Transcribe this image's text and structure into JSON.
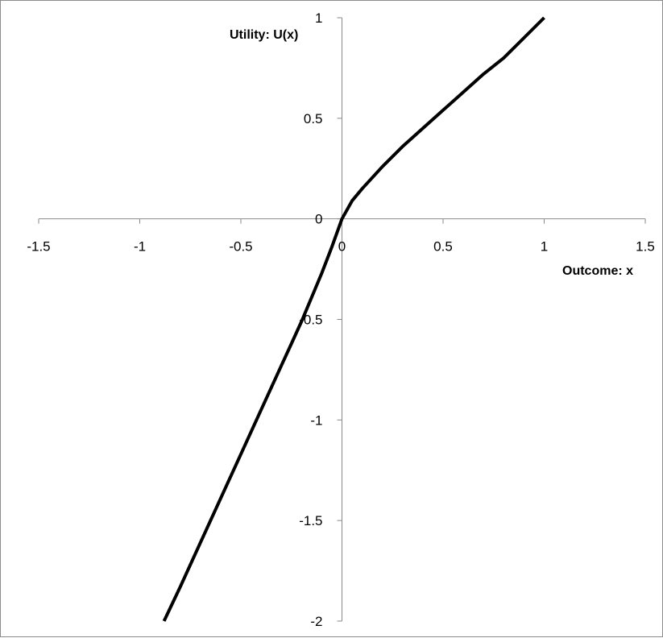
{
  "chart_data": {
    "type": "line",
    "title": "",
    "xlabel": "Outcome: x",
    "ylabel": "Utility: U(x)",
    "xlim": [
      -1.5,
      1.5
    ],
    "ylim": [
      -2,
      1
    ],
    "x_ticks": [
      -1.5,
      -1,
      -0.5,
      0,
      0.5,
      1,
      1.5
    ],
    "y_ticks": [
      -2,
      -1.5,
      -1,
      -0.5,
      0,
      0.5,
      1
    ],
    "x_tick_labels": [
      "-1.5",
      "-1",
      "-0.5",
      "0",
      "0.5",
      "1",
      "1.5"
    ],
    "y_tick_labels": [
      "-2",
      "-1.5",
      "-1",
      "-0.5",
      "0",
      "0.5",
      "1"
    ],
    "grid": false,
    "legend": "none",
    "series": [
      {
        "color": "#000000",
        "x": [
          -0.88,
          -0.8,
          -0.7,
          -0.6,
          -0.5,
          -0.4,
          -0.3,
          -0.25,
          -0.2,
          -0.15,
          -0.1,
          -0.05,
          0,
          0.05,
          0.1,
          0.2,
          0.3,
          0.4,
          0.5,
          0.6,
          0.7,
          0.8,
          0.9,
          1.0
        ],
        "y": [
          -2.0,
          -1.83,
          -1.61,
          -1.39,
          -1.17,
          -0.95,
          -0.73,
          -0.62,
          -0.51,
          -0.39,
          -0.27,
          -0.14,
          0,
          0.09,
          0.15,
          0.26,
          0.36,
          0.45,
          0.54,
          0.63,
          0.72,
          0.8,
          0.9,
          1.0
        ]
      }
    ]
  }
}
